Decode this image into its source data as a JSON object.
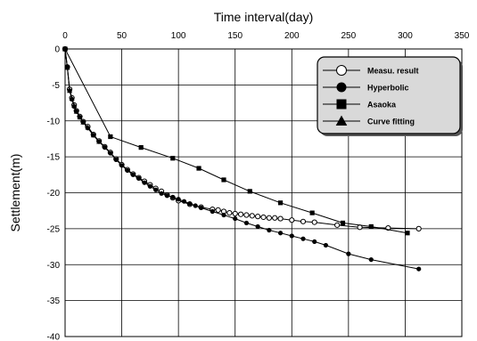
{
  "chart_data": {
    "type": "line",
    "title": "",
    "xlabel": "Time interval(day)",
    "ylabel": "Settlement(m)",
    "xlim": [
      0,
      350
    ],
    "ylim": [
      -40,
      0
    ],
    "x_axis_position": "top",
    "xticks": [
      "0",
      "50",
      "100",
      "150",
      "200",
      "250",
      "300",
      "350"
    ],
    "yticks": [
      "0",
      "-5",
      "-10",
      "-15",
      "-20",
      "-25",
      "-30",
      "-35",
      "-40"
    ],
    "grid": true,
    "legend_position": "top-right",
    "legend_background": "#d9d9d9",
    "series": [
      {
        "name": "Measu. result",
        "marker": "open-circle",
        "x": [
          0,
          2,
          4,
          6,
          8,
          10,
          13,
          16,
          20,
          25,
          30,
          35,
          40,
          45,
          50,
          55,
          60,
          65,
          70,
          75,
          80,
          85,
          90,
          95,
          100,
          110,
          120,
          130,
          135,
          140,
          145,
          150,
          155,
          160,
          165,
          170,
          175,
          180,
          185,
          190,
          200,
          210,
          220,
          240,
          260,
          285,
          312
        ],
        "y": [
          0,
          -2.5,
          -5.6,
          -6.8,
          -7.8,
          -8.6,
          -9.4,
          -10.1,
          -10.8,
          -11.9,
          -12.8,
          -13.6,
          -14.4,
          -15.3,
          -16.1,
          -16.8,
          -17.4,
          -17.9,
          -18.4,
          -18.9,
          -19.4,
          -19.8,
          -20.3,
          -20.7,
          -21.1,
          -21.6,
          -22.0,
          -22.3,
          -22.4,
          -22.6,
          -22.8,
          -22.9,
          -23.0,
          -23.1,
          -23.2,
          -23.3,
          -23.4,
          -23.5,
          -23.5,
          -23.6,
          -23.8,
          -24.0,
          -24.1,
          -24.5,
          -24.8,
          -24.9,
          -25.0
        ]
      },
      {
        "name": "Hyperbolic",
        "marker": "filled-circle",
        "x": [
          0,
          2,
          4,
          6,
          8,
          10,
          13,
          16,
          20,
          25,
          30,
          35,
          40,
          45,
          50,
          55,
          60,
          65,
          70,
          75,
          80,
          85,
          90,
          95,
          100,
          105,
          110,
          115,
          120,
          130,
          140,
          150,
          160,
          170,
          180,
          190,
          200,
          210,
          220,
          230,
          250,
          270,
          312
        ],
        "y": [
          0,
          -2.5,
          -5.8,
          -7.0,
          -8.0,
          -8.7,
          -9.5,
          -10.2,
          -11.0,
          -12.0,
          -12.9,
          -13.7,
          -14.5,
          -15.4,
          -16.2,
          -16.9,
          -17.5,
          -18.0,
          -18.6,
          -19.1,
          -19.6,
          -20.1,
          -20.4,
          -20.6,
          -20.9,
          -21.2,
          -21.5,
          -21.8,
          -22.1,
          -22.6,
          -23.1,
          -23.6,
          -24.2,
          -24.7,
          -25.2,
          -25.6,
          -26.0,
          -26.4,
          -26.8,
          -27.3,
          -28.5,
          -29.3,
          -30.6
        ]
      },
      {
        "name": "Asaoka",
        "marker": "filled-square",
        "x": [
          0,
          40,
          67,
          95,
          118,
          140,
          163,
          190,
          218,
          245,
          270,
          302
        ],
        "y": [
          0,
          -12.2,
          -13.7,
          -15.2,
          -16.6,
          -18.2,
          -19.8,
          -21.4,
          -22.8,
          -24.2,
          -24.7,
          -25.6
        ]
      },
      {
        "name": "Curve fitting",
        "marker": "filled-triangle",
        "x": [
          0,
          2,
          4,
          6,
          8,
          10,
          13,
          16,
          20,
          25,
          30
        ],
        "y": [
          0,
          -2.6,
          -5.8,
          -6.9,
          -7.9,
          -8.7,
          -9.5,
          -10.2,
          -10.9,
          -12.0,
          -12.9
        ]
      }
    ]
  }
}
